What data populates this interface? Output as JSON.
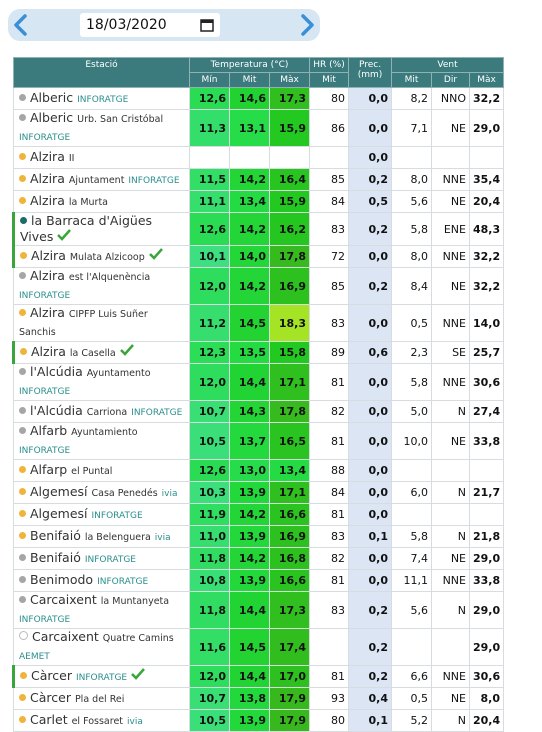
{
  "date": "18/03/2020",
  "table": {
    "header": {
      "station": "Estació",
      "temperature": "Temperatura (°C)",
      "humidity": "HR (%)",
      "precipitation": "Prec. (mm)",
      "wind": "Vent",
      "temp_min": "Mín",
      "temp_avg": "Mit",
      "temp_max": "Màx",
      "hum_avg": "Mit",
      "wind_avg": "Mit",
      "wind_dir": "Dir",
      "wind_max": "Màx"
    },
    "rows": [
      {
        "name": "Alberic",
        "source": "INFORATGE",
        "dot": "#a6a6a6",
        "values": [
          "12,6",
          "14,6",
          "17,3",
          "80",
          "0,0",
          "8,2",
          "NNO",
          "32,2"
        ]
      },
      {
        "name": "Alberic",
        "place": "Urb. San Cristóbal",
        "source": "INFORATGE",
        "dot": "#a6a6a6",
        "values": [
          "11,3",
          "13,1",
          "15,9",
          "86",
          "0,0",
          "7,1",
          "NE",
          "29,0"
        ]
      },
      {
        "name": "Alzira",
        "place": "II",
        "dot": "#f0b43c",
        "values": [
          null,
          null,
          null,
          null,
          "0,0",
          null,
          null,
          null
        ]
      },
      {
        "name": "Alzira",
        "place": "Ajuntament",
        "source": "INFORATGE",
        "dot": "#f0b43c",
        "values": [
          "11,5",
          "14,2",
          "16,4",
          "85",
          "0,2",
          "8,0",
          "NNE",
          "35,4"
        ]
      },
      {
        "name": "Alzira",
        "place": "la Murta",
        "dot": "#f0b43c",
        "values": [
          "11,1",
          "13,4",
          "15,9",
          "84",
          "0,5",
          "5,6",
          "NE",
          "20,4"
        ]
      },
      {
        "name": "la Barraca d'Aigües Vives",
        "verified": true,
        "dot": "#1d6b6b",
        "values": [
          "12,6",
          "14,2",
          "16,2",
          "83",
          "0,2",
          "5,8",
          "ENE",
          "48,3"
        ]
      },
      {
        "name": "Alzira",
        "place": "Mulata Alzicoop",
        "verified": true,
        "dot": "#f0b43c",
        "values": [
          "10,1",
          "14,0",
          "17,8",
          "72",
          "0,0",
          "8,0",
          "NNE",
          "32,2"
        ]
      },
      {
        "name": "Alzira",
        "place": "est l'Alquenència",
        "source": "INFORATGE",
        "dot": "#a6a6a6",
        "values": [
          "12,0",
          "14,2",
          "16,9",
          "85",
          "0,2",
          "8,4",
          "NE",
          "32,2"
        ]
      },
      {
        "name": "Alzira",
        "place": "CIPFP Luis Suñer Sanchis",
        "dot": "#f0b43c",
        "values": [
          "11,2",
          "14,5",
          "18,3",
          "83",
          "0,0",
          "0,5",
          "NNE",
          "14,0"
        ]
      },
      {
        "name": "Alzira",
        "place": "la Casella",
        "verified": true,
        "dot": "#f0b43c",
        "values": [
          "12,3",
          "13,5",
          "15,8",
          "89",
          "0,6",
          "2,3",
          "SE",
          "25,7"
        ]
      },
      {
        "name": "l'Alcúdia",
        "place": "Ayuntamento",
        "source": "INFORATGE",
        "dot": "#a6a6a6",
        "values": [
          "12,0",
          "14,4",
          "17,1",
          "81",
          "0,0",
          "5,8",
          "NNE",
          "30,6"
        ]
      },
      {
        "name": "l'Alcúdia",
        "place": "Carriona",
        "source": "INFORATGE",
        "dot": "#a6a6a6",
        "values": [
          "10,7",
          "14,3",
          "17,8",
          "82",
          "0,0",
          "5,0",
          "N",
          "27,4"
        ]
      },
      {
        "name": "Alfarb",
        "place": "Ayuntamiento",
        "source": "INFORATGE",
        "dot": "#a6a6a6",
        "values": [
          "10,5",
          "13,7",
          "16,5",
          "81",
          "0,0",
          "10,0",
          "NE",
          "33,8"
        ]
      },
      {
        "name": "Alfarp",
        "place": "el Puntal",
        "dot": "#f0b43c",
        "values": [
          "12,6",
          "13,0",
          "13,4",
          "88",
          "0,0",
          null,
          null,
          null
        ]
      },
      {
        "name": "Algemesí",
        "place": "Casa Penedés",
        "source": "ivia",
        "dot": "#f0b43c",
        "values": [
          "10,3",
          "13,9",
          "17,1",
          "84",
          "0,0",
          "6,0",
          "N",
          "21,7"
        ]
      },
      {
        "name": "Algemesí",
        "source": "INFORATGE",
        "dot": "#f0b43c",
        "values": [
          "11,9",
          "14,2",
          "16,6",
          "81",
          "0,0",
          null,
          null,
          null
        ]
      },
      {
        "name": "Benifaió",
        "place": "la Belenguera",
        "source": "ivia",
        "dot": "#f0b43c",
        "values": [
          "11,0",
          "13,9",
          "16,9",
          "83",
          "0,1",
          "5,8",
          "N",
          "21,8"
        ]
      },
      {
        "name": "Benifaió",
        "source": "INFORATGE",
        "dot": "#a6a6a6",
        "values": [
          "11,8",
          "14,2",
          "16,8",
          "82",
          "0,0",
          "7,4",
          "NE",
          "29,0"
        ]
      },
      {
        "name": "Benimodo",
        "source": "INFORATGE",
        "dot": "#a6a6a6",
        "values": [
          "10,8",
          "13,9",
          "16,6",
          "81",
          "0,0",
          "11,1",
          "NNE",
          "33,8"
        ]
      },
      {
        "name": "Carcaixent",
        "place": "la Muntanyeta",
        "source": "INFORATGE",
        "dot": "#a6a6a6",
        "values": [
          "11,8",
          "14,4",
          "17,3",
          "83",
          "0,2",
          "5,6",
          "N",
          "29,0"
        ]
      },
      {
        "name": "Carcaixent",
        "place": "Quatre Camins",
        "source": "AEMET",
        "dot": "#ffffff",
        "values": [
          "11,6",
          "14,5",
          "17,4",
          null,
          "0,2",
          null,
          null,
          "29,0"
        ]
      },
      {
        "name": "Càrcer",
        "source": "INFORATGE",
        "verified": true,
        "dot": "#f0b43c",
        "values": [
          "12,0",
          "14,4",
          "17,0",
          "81",
          "0,2",
          "6,6",
          "NNE",
          "30,6"
        ]
      },
      {
        "name": "Càrcer",
        "place": "Pla del Rei",
        "dot": "#f0b43c",
        "values": [
          "10,7",
          "13,8",
          "17,9",
          "93",
          "0,4",
          "0,5",
          "NE",
          "8,0"
        ]
      },
      {
        "name": "Carlet",
        "place": "el Fossaret",
        "source": "ivia",
        "dot": "#f0b43c",
        "values": [
          "10,5",
          "13,9",
          "17,9",
          "80",
          "0,1",
          "5,2",
          "N",
          "20,4"
        ]
      }
    ]
  }
}
